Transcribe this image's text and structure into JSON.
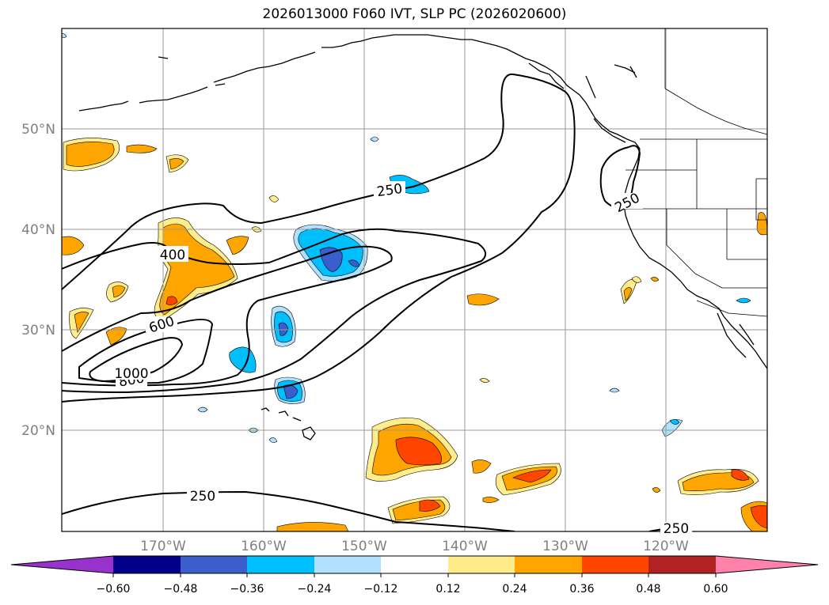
{
  "title": "2026013000 F060 IVT, SLP PC (2026020600)",
  "map": {
    "lat_labels": [
      "50°N",
      "40°N",
      "30°N",
      "20°N"
    ],
    "lon_labels": [
      "170°W",
      "160°W",
      "150°W",
      "140°W",
      "130°W",
      "120°W"
    ],
    "contour_labels": [
      "250",
      "400",
      "600",
      "800",
      "1000",
      "250",
      "250",
      "250"
    ]
  },
  "colorbar": {
    "ticks": [
      "−0.60",
      "−0.48",
      "−0.36",
      "−0.24",
      "−0.12",
      "0.12",
      "0.24",
      "0.36",
      "0.48",
      "0.60"
    ],
    "colors": {
      "under": "#9932CC",
      "bins": [
        "#00008B",
        "#3A5FCD",
        "#00BFFF",
        "#B0E2FF",
        "#FFFFFF",
        "#FFEC8B",
        "#FFA500",
        "#FF4500",
        "#B22222"
      ],
      "over": "#FF82AB"
    }
  }
}
